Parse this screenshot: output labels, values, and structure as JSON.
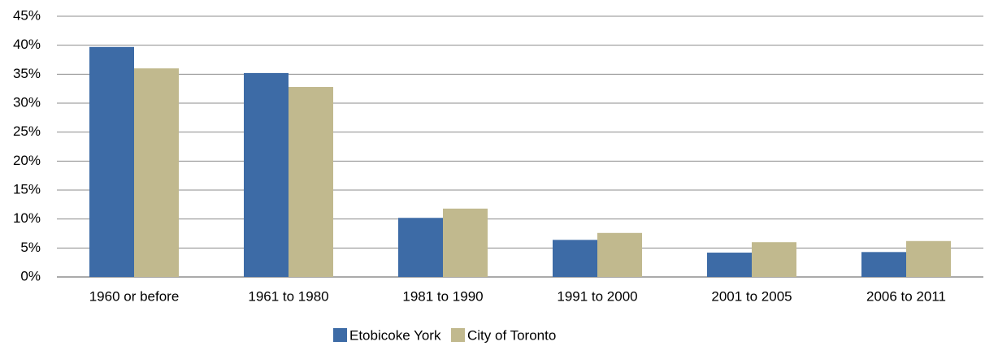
{
  "chart_data": {
    "type": "bar",
    "categories": [
      "1960 or before",
      "1961 to 1980",
      "1981 to 1990",
      "1991 to 2000",
      "2001 to 2005",
      "2006 to 2011"
    ],
    "series": [
      {
        "name": "Etobicoke York",
        "color": "#3d6ba6",
        "values": [
          39.7,
          35.2,
          10.2,
          6.4,
          4.2,
          4.3
        ]
      },
      {
        "name": "City of Toronto",
        "color": "#c1b98e",
        "values": [
          36.0,
          32.8,
          11.8,
          7.6,
          6.0,
          6.2
        ]
      }
    ],
    "ylim": [
      0,
      45
    ],
    "yticks": [
      {
        "value": 0,
        "label": "0%"
      },
      {
        "value": 5,
        "label": "5%"
      },
      {
        "value": 10,
        "label": "10%"
      },
      {
        "value": 15,
        "label": "15%"
      },
      {
        "value": 20,
        "label": "20%"
      },
      {
        "value": 25,
        "label": "25%"
      },
      {
        "value": 30,
        "label": "30%"
      },
      {
        "value": 35,
        "label": "35%"
      },
      {
        "value": 40,
        "label": "40%"
      },
      {
        "value": 45,
        "label": "45%"
      }
    ],
    "grid": true,
    "legend": "bottom"
  }
}
